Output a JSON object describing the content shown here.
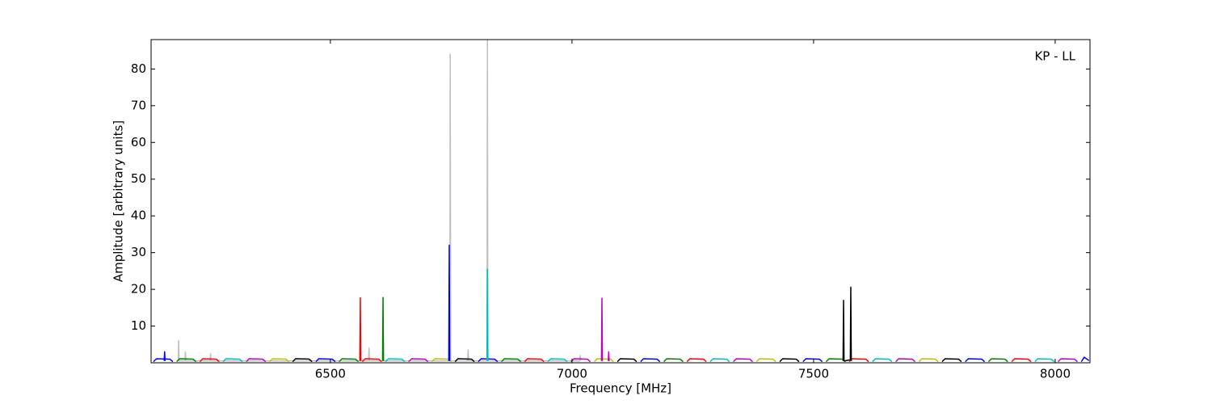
{
  "chart_data": {
    "type": "line",
    "annotation": "KP - LL",
    "xlabel": "Frequency [MHz]",
    "ylabel": "Amplitude [arbitrary units]",
    "xlim": [
      6129,
      8072
    ],
    "xticks": [
      6500,
      7000,
      7500,
      8000
    ],
    "ylim": [
      0,
      88
    ],
    "yticks": [
      10,
      20,
      30,
      40,
      50,
      60,
      70,
      80
    ],
    "series": [
      {
        "color": "#c0c0c0",
        "x": [
          6185,
          6186,
          6187,
          6199,
          6200,
          6201,
          6251,
          6252,
          6253,
          6579,
          6580,
          6581,
          6747,
          6748,
          6749,
          6784,
          6785,
          6786,
          6824,
          6825,
          6826,
          7016,
          7017,
          7018
        ],
        "values": [
          0.5,
          6,
          0.5,
          0.5,
          3,
          0.5,
          0.5,
          2.5,
          0.5,
          0.5,
          4,
          0.5,
          0.5,
          84,
          0.5,
          0.5,
          3.5,
          0.5,
          0.5,
          88,
          0.5,
          0.5,
          2,
          0.5
        ]
      },
      {
        "color": "#0000ff",
        "x": [
          6134,
          6140,
          6168,
          6174,
          6176,
          6470,
          6476,
          6504,
          6510,
          6512,
          6806,
          6812,
          6840,
          6846,
          6848,
          7142,
          7148,
          7176,
          7182,
          7184,
          7478,
          7484,
          7512,
          7518,
          7520,
          7814,
          7820,
          7848,
          7854,
          7856,
          8054,
          8060,
          8070
        ],
        "values": [
          0.3,
          1.1,
          1.0,
          0.3,
          null,
          0.3,
          1.1,
          1.0,
          0.3,
          null,
          0.3,
          1.1,
          1.0,
          0.3,
          null,
          0.3,
          1.1,
          1.0,
          0.3,
          null,
          0.3,
          1.1,
          1.0,
          0.3,
          null,
          0.3,
          1.1,
          1.0,
          0.3,
          null,
          0.3,
          1.5,
          0.6
        ]
      },
      {
        "color": "#008000",
        "x": [
          6182,
          6188,
          6216,
          6222,
          6224,
          6518,
          6524,
          6552,
          6558,
          6560,
          6854,
          6860,
          6888,
          6894,
          6896,
          7190,
          7196,
          7224,
          7230,
          7232,
          7526,
          7532,
          7560,
          7566,
          7568,
          7862,
          7868,
          7896,
          7902,
          7904
        ],
        "values": [
          0.3,
          1.1,
          1.0,
          0.3,
          null,
          0.3,
          1.1,
          1.0,
          0.3,
          null,
          0.3,
          1.1,
          1.0,
          0.3,
          null,
          0.3,
          1.1,
          1.0,
          0.3,
          null,
          0.3,
          1.1,
          1.0,
          0.3,
          null,
          0.3,
          1.1,
          1.0,
          0.3,
          null
        ]
      },
      {
        "color": "#ff0000",
        "x": [
          6230,
          6236,
          6264,
          6270,
          6272,
          6566,
          6572,
          6600,
          6606,
          6608,
          6902,
          6908,
          6936,
          6942,
          6944,
          7238,
          7244,
          7272,
          7278,
          7280,
          7574,
          7580,
          7608,
          7614,
          7616,
          7910,
          7916,
          7944,
          7950,
          7952
        ],
        "values": [
          0.3,
          1.1,
          1.0,
          0.3,
          null,
          0.3,
          1.1,
          1.0,
          0.3,
          null,
          0.3,
          1.1,
          1.0,
          0.3,
          null,
          0.3,
          1.1,
          1.0,
          0.3,
          null,
          0.3,
          1.1,
          1.0,
          0.3,
          null,
          0.3,
          1.1,
          1.0,
          0.3,
          null
        ]
      },
      {
        "color": "#00bfbf",
        "x": [
          6278,
          6284,
          6312,
          6318,
          6320,
          6614,
          6620,
          6648,
          6654,
          6656,
          6950,
          6956,
          6984,
          6990,
          6992,
          7286,
          7292,
          7320,
          7326,
          7328,
          7622,
          7628,
          7656,
          7662,
          7664,
          7958,
          7964,
          7992,
          7998,
          8000
        ],
        "values": [
          0.3,
          1.1,
          1.0,
          0.3,
          null,
          0.3,
          1.1,
          1.0,
          0.3,
          null,
          0.3,
          1.1,
          1.0,
          0.3,
          null,
          0.3,
          1.1,
          1.0,
          0.3,
          null,
          0.3,
          1.1,
          1.0,
          0.3,
          null,
          0.3,
          1.1,
          1.0,
          0.3,
          null
        ]
      },
      {
        "color": "#bf00bf",
        "x": [
          6326,
          6332,
          6360,
          6366,
          6368,
          6662,
          6668,
          6696,
          6702,
          6704,
          6998,
          7004,
          7032,
          7038,
          7040,
          7334,
          7340,
          7368,
          7374,
          7376,
          7670,
          7676,
          7704,
          7710,
          7712,
          8006,
          8012,
          8040,
          8046,
          8048
        ],
        "values": [
          0.3,
          1.1,
          1.0,
          0.3,
          null,
          0.3,
          1.1,
          1.0,
          0.3,
          null,
          0.3,
          1.1,
          1.0,
          0.3,
          null,
          0.3,
          1.1,
          1.0,
          0.3,
          null,
          0.3,
          1.1,
          1.0,
          0.3,
          null,
          0.3,
          1.1,
          1.0,
          0.3,
          null
        ]
      },
      {
        "color": "#bfbf00",
        "x": [
          6374,
          6380,
          6408,
          6414,
          6416,
          6710,
          6716,
          6744,
          6750,
          6752,
          7046,
          7052,
          7080,
          7086,
          7088,
          7382,
          7388,
          7416,
          7422,
          7424,
          7718,
          7724,
          7752,
          7758,
          7760
        ],
        "values": [
          0.3,
          1.1,
          1.0,
          0.3,
          null,
          0.3,
          1.1,
          1.0,
          0.3,
          null,
          0.3,
          1.1,
          1.0,
          0.3,
          null,
          0.3,
          1.1,
          1.0,
          0.3,
          null,
          0.3,
          1.1,
          1.0,
          0.3,
          null
        ]
      },
      {
        "color": "#000000",
        "x": [
          6422,
          6428,
          6456,
          6462,
          6464,
          6758,
          6764,
          6792,
          6798,
          6800,
          7094,
          7100,
          7128,
          7134,
          7136,
          7430,
          7436,
          7464,
          7470,
          7472,
          7766,
          7772,
          7800,
          7806,
          7808
        ],
        "values": [
          0.3,
          1.1,
          1.0,
          0.3,
          null,
          0.3,
          1.1,
          1.0,
          0.3,
          null,
          0.3,
          1.1,
          1.0,
          0.3,
          null,
          0.3,
          1.1,
          1.0,
          0.3,
          null,
          0.3,
          1.1,
          1.0,
          0.3,
          null
        ]
      },
      {
        "color": "#0000ff",
        "x": [
          6156,
          6157,
          6158,
          6160,
          6745,
          6746,
          6747
        ],
        "values": [
          0.5,
          3,
          0.5,
          null,
          0.5,
          32,
          0.5
        ]
      },
      {
        "color": "#ff0000",
        "x": [
          6561,
          6562,
          6563
        ],
        "values": [
          0.5,
          17.7,
          0.5
        ]
      },
      {
        "color": "#008000",
        "x": [
          6608,
          6609,
          6610
        ],
        "values": [
          0.5,
          17.8,
          0.5
        ]
      },
      {
        "color": "#00bfbf",
        "x": [
          6824,
          6825,
          6826
        ],
        "values": [
          0.5,
          25.5,
          0.5
        ]
      },
      {
        "color": "#bf00bf",
        "x": [
          7061,
          7062,
          7063,
          7070,
          7075,
          7076,
          7077
        ],
        "values": [
          0.5,
          17.6,
          0.5,
          null,
          0.5,
          3,
          0.5
        ]
      },
      {
        "color": "#000000",
        "x": [
          7561,
          7562,
          7563,
          7576,
          7577,
          7578
        ],
        "values": [
          0.5,
          17,
          0.5,
          0.8,
          20.6,
          0.5
        ]
      }
    ]
  }
}
